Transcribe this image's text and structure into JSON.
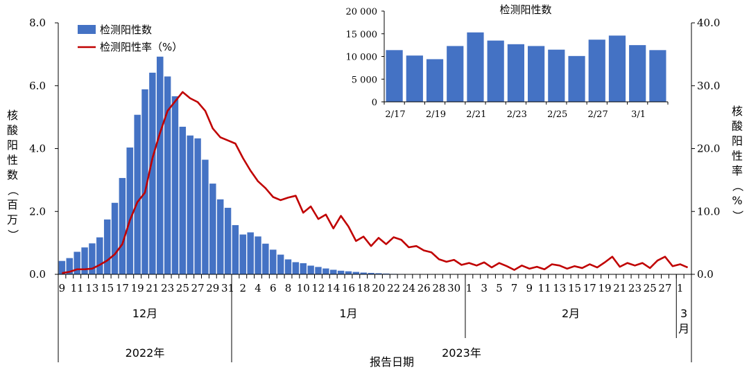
{
  "colors": {
    "bar": "#4472C4",
    "line": "#C00000",
    "inset_bar": "#4472C4"
  },
  "chart_data": [
    {
      "type": "bar",
      "series": [
        {
          "name": "检测阳性数",
          "axis": "left",
          "kind": "bar",
          "values": [
            0.43,
            0.52,
            0.72,
            0.86,
            0.99,
            1.18,
            1.75,
            2.28,
            3.07,
            4.04,
            5.08,
            5.89,
            6.42,
            6.93,
            6.3,
            5.67,
            4.7,
            4.42,
            4.33,
            3.65,
            2.89,
            2.39,
            2.12,
            1.57,
            1.27,
            1.34,
            1.21,
            0.98,
            0.79,
            0.63,
            0.48,
            0.39,
            0.36,
            0.28,
            0.24,
            0.19,
            0.15,
            0.12,
            0.1,
            0.08,
            0.06,
            0.05,
            0.04,
            0.03,
            0.02,
            0.015,
            0.01,
            0.01,
            0.01,
            0.01,
            0.01,
            0.01,
            0.01,
            0.01,
            0.01,
            0.01,
            0.01,
            0.01,
            0.01,
            0.01,
            0.01,
            0.01,
            0.01,
            0.01,
            0.01,
            0.01,
            0.01,
            0.01,
            0.01,
            0.01,
            0.01,
            0.01,
            0.01,
            0.01,
            0.01,
            0.01,
            0.01,
            0.01,
            0.01,
            0.01,
            0.01,
            0.01,
            0.01,
            0.01
          ]
        },
        {
          "name": "检测阳性率（%）",
          "axis": "right",
          "kind": "line",
          "values": [
            0.2,
            0.4,
            0.8,
            0.8,
            0.9,
            1.5,
            2.2,
            3.2,
            4.8,
            8.6,
            11.5,
            13.0,
            18.5,
            22.5,
            26.0,
            27.5,
            29.0,
            28.0,
            27.4,
            26.0,
            23.2,
            21.8,
            21.3,
            20.8,
            18.5,
            16.5,
            14.8,
            13.7,
            12.3,
            11.8,
            12.2,
            12.5,
            9.8,
            10.8,
            8.8,
            9.5,
            7.3,
            9.3,
            7.6,
            5.3,
            6.0,
            4.5,
            5.8,
            4.8,
            5.9,
            5.5,
            4.3,
            4.5,
            3.8,
            3.5,
            2.4,
            2.0,
            2.3,
            1.5,
            1.8,
            1.4,
            1.9,
            1.1,
            1.8,
            1.3,
            0.7,
            1.4,
            0.9,
            1.2,
            0.8,
            1.6,
            1.4,
            0.9,
            1.3,
            1.0,
            1.6,
            1.1,
            1.9,
            2.8,
            1.2,
            1.8,
            1.4,
            1.8,
            1.0,
            2.2,
            2.8,
            1.3,
            1.6,
            1.1
          ]
        }
      ],
      "x_tick_labels": [
        "9",
        "11",
        "13",
        "15",
        "17",
        "19",
        "21",
        "23",
        "25",
        "27",
        "29",
        "31",
        "2",
        "4",
        "6",
        "8",
        "10",
        "12",
        "14",
        "16",
        "18",
        "20",
        "22",
        "24",
        "26",
        "28",
        "30",
        "1",
        "3",
        "5",
        "7",
        "9",
        "11",
        "13",
        "15",
        "17",
        "19",
        "21",
        "23",
        "25",
        "27",
        "1"
      ],
      "x_groups_level1": [
        "12月",
        "1月",
        "2月",
        "3\n月"
      ],
      "x_groups_level2": [
        "2022年",
        "2023年"
      ],
      "xlabel": "报告日期",
      "ylabel": "核酸阳性数（百万）",
      "y2label": "核酸阳性率（%）",
      "ylim": [
        0,
        8
      ],
      "y_ticks": [
        "0.0",
        "2.0",
        "4.0",
        "6.0",
        "8.0"
      ],
      "y2lim": [
        0,
        40
      ],
      "y2_ticks": [
        "0.0",
        "10.0",
        "20.0",
        "30.0",
        "40.0"
      ],
      "legend": {
        "placement": "top-left",
        "bar_label": "检测阳性数",
        "line_label": "检测阳性率（%）"
      }
    },
    {
      "type": "bar",
      "title": "检测阳性数",
      "categories": [
        "2/17",
        "2/18",
        "2/19",
        "2/20",
        "2/21",
        "2/22",
        "2/23",
        "2/24",
        "2/25",
        "2/26",
        "2/27",
        "2/28",
        "3/1",
        "3/2"
      ],
      "values": [
        11400,
        10200,
        9400,
        12300,
        15300,
        13500,
        12700,
        12300,
        11500,
        10100,
        13700,
        14600,
        12500,
        11400
      ],
      "x_tick_labels": [
        "2/17",
        "2/19",
        "2/21",
        "2/23",
        "2/25",
        "2/27",
        "3/1"
      ],
      "ylim": [
        0,
        20000
      ],
      "y_ticks": [
        "0",
        "5 000",
        "10 000",
        "15 000",
        "20 000"
      ]
    }
  ]
}
